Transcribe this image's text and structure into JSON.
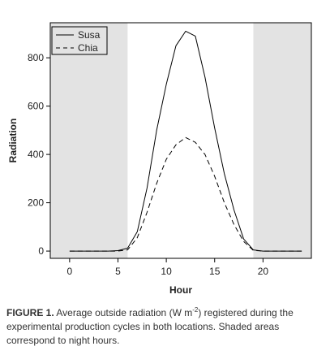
{
  "chart_data": {
    "type": "line",
    "xlabel": "Hour",
    "ylabel": "Radiation",
    "xlim": [
      -2,
      25
    ],
    "ylim": [
      -30,
      945
    ],
    "xticks": [
      0,
      5,
      10,
      15,
      20
    ],
    "yticks": [
      0,
      200,
      400,
      600,
      800
    ],
    "night_shading": [
      [
        -2,
        6
      ],
      [
        19,
        25
      ]
    ],
    "legend_position": "top-left",
    "series": [
      {
        "name": "Susa",
        "line_style": "solid",
        "x": [
          0,
          1,
          2,
          3,
          4,
          5,
          6,
          7,
          8,
          9,
          10,
          11,
          12,
          13,
          14,
          15,
          16,
          17,
          18,
          19,
          20,
          21,
          22,
          23,
          24
        ],
        "values": [
          0,
          0,
          0,
          0,
          0,
          2,
          12,
          80,
          260,
          500,
          690,
          850,
          910,
          890,
          720,
          510,
          320,
          170,
          50,
          5,
          0,
          0,
          0,
          0,
          0
        ]
      },
      {
        "name": "Chia",
        "line_style": "dashed",
        "x": [
          0,
          1,
          2,
          3,
          4,
          5,
          6,
          7,
          8,
          9,
          10,
          11,
          12,
          13,
          14,
          15,
          16,
          17,
          18,
          19,
          20,
          21,
          22,
          23,
          24
        ],
        "values": [
          0,
          0,
          0,
          0,
          0,
          0,
          5,
          55,
          160,
          280,
          380,
          440,
          470,
          450,
          400,
          310,
          200,
          110,
          40,
          3,
          0,
          0,
          0,
          0,
          0
        ]
      }
    ]
  },
  "caption": {
    "lead": "FIGURE 1.",
    "text_before_sup": " Average outside radiation (W m",
    "superscript": "-2",
    "text_after_sup": ") registered during the experimental production cycles in both locations. Shaded areas correspond to night hours."
  },
  "colors": {
    "night_shading": "#e3e3e3",
    "line": "#000000"
  }
}
